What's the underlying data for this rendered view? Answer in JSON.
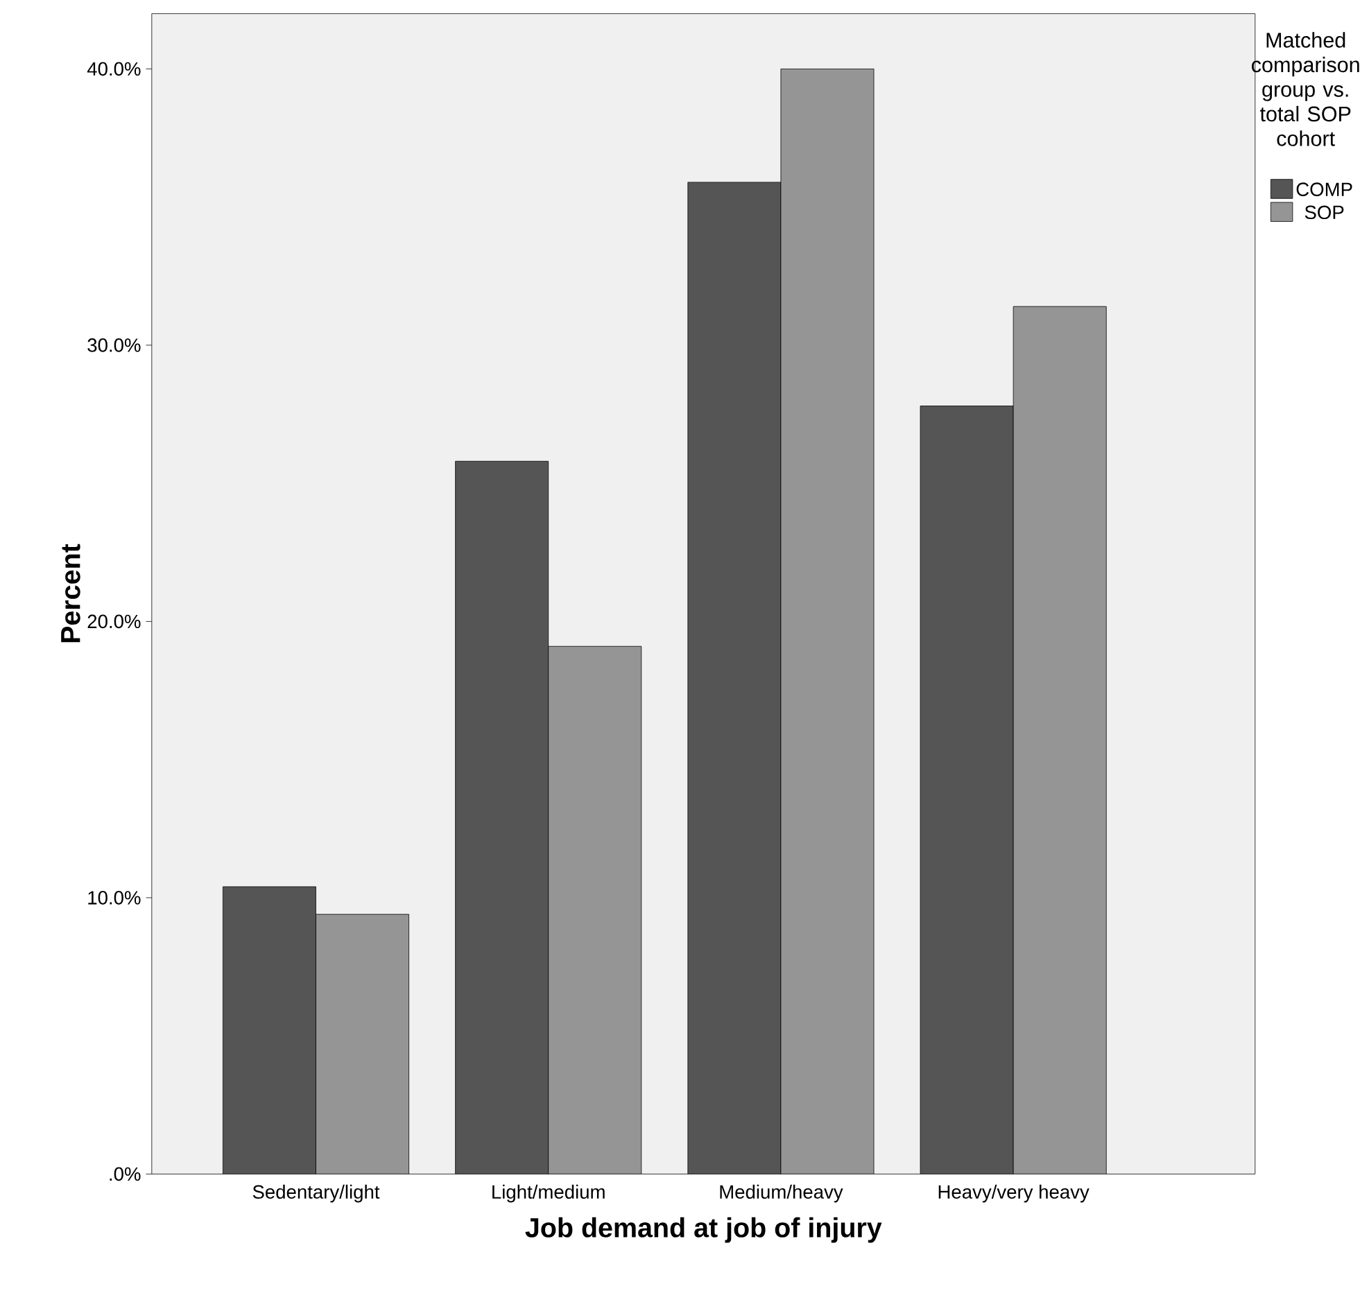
{
  "chart_data": {
    "type": "bar",
    "xlabel": "Job demand at job of injury",
    "ylabel": "Percent",
    "legend_title": "Matched comparison group vs. total SOP cohort",
    "categories": [
      "Sedentary/light",
      "Light/medium",
      "Medium/heavy",
      "Heavy/very heavy"
    ],
    "series": [
      {
        "name": "COMP",
        "color": "#555555",
        "values": [
          10.4,
          25.8,
          35.9,
          27.8
        ]
      },
      {
        "name": "SOP",
        "color": "#959595",
        "values": [
          9.4,
          19.1,
          40.0,
          31.4
        ]
      }
    ],
    "ylim": [
      0,
      42
    ],
    "yticks": [
      {
        "value": 0,
        "label": ".0%"
      },
      {
        "value": 10,
        "label": "10.0%"
      },
      {
        "value": 20,
        "label": "20.0%"
      },
      {
        "value": 30,
        "label": "30.0%"
      },
      {
        "value": 40,
        "label": "40.0%"
      }
    ],
    "grid": false,
    "legend": "right"
  }
}
